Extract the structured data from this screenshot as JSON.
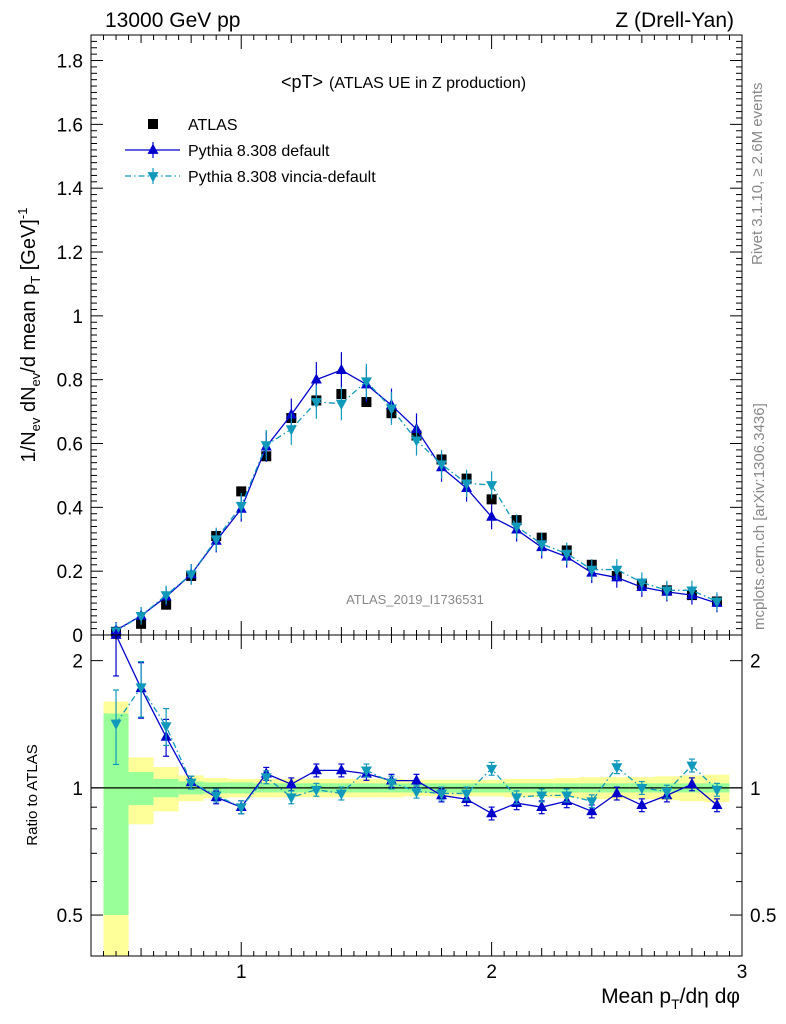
{
  "header": {
    "left": "13000 GeV pp",
    "right": "Z (Drell-Yan)"
  },
  "side_text": {
    "rivet": "Rivet 3.1.10, ≥ 2.6M events",
    "mcplots": "mcplots.cern.ch [arXiv:1306.3436]"
  },
  "watermark": "ATLAS_2019_I1736531",
  "chart_data": [
    {
      "type": "scatter",
      "title": "<pT> (ATLAS UE in Z production)",
      "title_main": "<pT>",
      "title_sub": "(ATLAS UE in Z production)",
      "ylabel": "1/N_ev dN_ev/d mean p_T [GeV]^-1",
      "xlabel": "Mean p_T/dη dφ",
      "xlim": [
        0.4,
        3.0
      ],
      "ylim": [
        0,
        1.88
      ],
      "yticks": [
        0,
        0.2,
        0.4,
        0.6,
        0.8,
        1,
        1.2,
        1.4,
        1.6,
        1.8
      ],
      "xticks": [
        1,
        2,
        3
      ],
      "legend_position": "top-left",
      "x": [
        0.5,
        0.6,
        0.7,
        0.8,
        0.9,
        1.0,
        1.1,
        1.2,
        1.3,
        1.4,
        1.5,
        1.6,
        1.7,
        1.8,
        1.9,
        2.0,
        2.1,
        2.2,
        2.3,
        2.4,
        2.5,
        2.6,
        2.7,
        2.8,
        2.9
      ],
      "series": [
        {
          "name": "ATLAS",
          "color": "#000000",
          "marker": "square",
          "values": [
            0.01,
            0.035,
            0.095,
            0.185,
            0.31,
            0.45,
            0.56,
            0.68,
            0.735,
            0.755,
            0.73,
            0.695,
            0.625,
            0.55,
            0.49,
            0.425,
            0.36,
            0.305,
            0.265,
            0.22,
            0.185,
            0.16,
            0.14,
            0.125,
            0.105
          ]
        },
        {
          "name": "Pythia 8.308 default",
          "color": "#0000cc",
          "marker": "triangle-up",
          "line": "solid",
          "values": [
            0.015,
            0.06,
            0.12,
            0.19,
            0.295,
            0.395,
            0.59,
            0.69,
            0.8,
            0.83,
            0.785,
            0.72,
            0.645,
            0.525,
            0.46,
            0.37,
            0.33,
            0.275,
            0.245,
            0.195,
            0.18,
            0.15,
            0.135,
            0.125,
            0.1
          ]
        },
        {
          "name": "Pythia 8.308 vincia-default",
          "color": "#1199bb",
          "marker": "triangle-down",
          "line": "dashdot",
          "values": [
            0.012,
            0.06,
            0.125,
            0.19,
            0.3,
            0.405,
            0.595,
            0.645,
            0.73,
            0.725,
            0.795,
            0.71,
            0.61,
            0.535,
            0.475,
            0.47,
            0.34,
            0.285,
            0.255,
            0.205,
            0.205,
            0.165,
            0.14,
            0.14,
            0.105
          ]
        }
      ]
    },
    {
      "type": "line",
      "ylabel": "Ratio to ATLAS",
      "xlabel": "Mean p_T/dη dφ",
      "xlim": [
        0.4,
        3.0
      ],
      "ylim": [
        0.4,
        2.3
      ],
      "yticks": [
        0.5,
        1,
        2
      ],
      "xticks": [
        1,
        2,
        3
      ],
      "x": [
        0.5,
        0.6,
        0.7,
        0.8,
        0.9,
        1.0,
        1.1,
        1.2,
        1.3,
        1.4,
        1.5,
        1.6,
        1.7,
        1.8,
        1.9,
        2.0,
        2.1,
        2.2,
        2.3,
        2.4,
        2.5,
        2.6,
        2.7,
        2.8,
        2.9
      ],
      "bands": {
        "green_halfwidth": [
          0.5,
          0.09,
          0.05,
          0.035,
          0.03,
          0.03,
          0.025,
          0.025,
          0.025,
          0.025,
          0.025,
          0.025,
          0.025,
          0.025,
          0.025,
          0.025,
          0.025,
          0.025,
          0.025,
          0.025,
          0.025,
          0.025,
          0.025,
          0.025,
          0.025
        ],
        "yellow_halfwidth": [
          0.6,
          0.18,
          0.12,
          0.07,
          0.055,
          0.05,
          0.05,
          0.05,
          0.05,
          0.05,
          0.05,
          0.05,
          0.045,
          0.045,
          0.045,
          0.045,
          0.05,
          0.05,
          0.055,
          0.06,
          0.06,
          0.06,
          0.065,
          0.07,
          0.075
        ]
      },
      "series": [
        {
          "name": "Pythia 8.308 default",
          "color": "#0000cc",
          "marker": "triangle-up",
          "line": "solid",
          "values": [
            2.3,
            1.72,
            1.32,
            1.03,
            0.95,
            0.9,
            1.08,
            1.02,
            1.1,
            1.1,
            1.08,
            1.04,
            1.04,
            0.96,
            0.94,
            0.87,
            0.92,
            0.9,
            0.93,
            0.88,
            0.97,
            0.91,
            0.96,
            1.02,
            0.91
          ]
        },
        {
          "name": "Pythia 8.308 vincia-default",
          "color": "#1199bb",
          "marker": "triangle-down",
          "line": "dashdot",
          "values": [
            1.42,
            1.73,
            1.4,
            1.03,
            0.96,
            0.9,
            1.06,
            0.95,
            0.99,
            0.97,
            1.1,
            1.03,
            0.98,
            0.97,
            0.97,
            1.11,
            0.95,
            0.96,
            0.96,
            0.93,
            1.12,
            1.0,
            0.98,
            1.13,
            0.99
          ]
        }
      ]
    }
  ]
}
